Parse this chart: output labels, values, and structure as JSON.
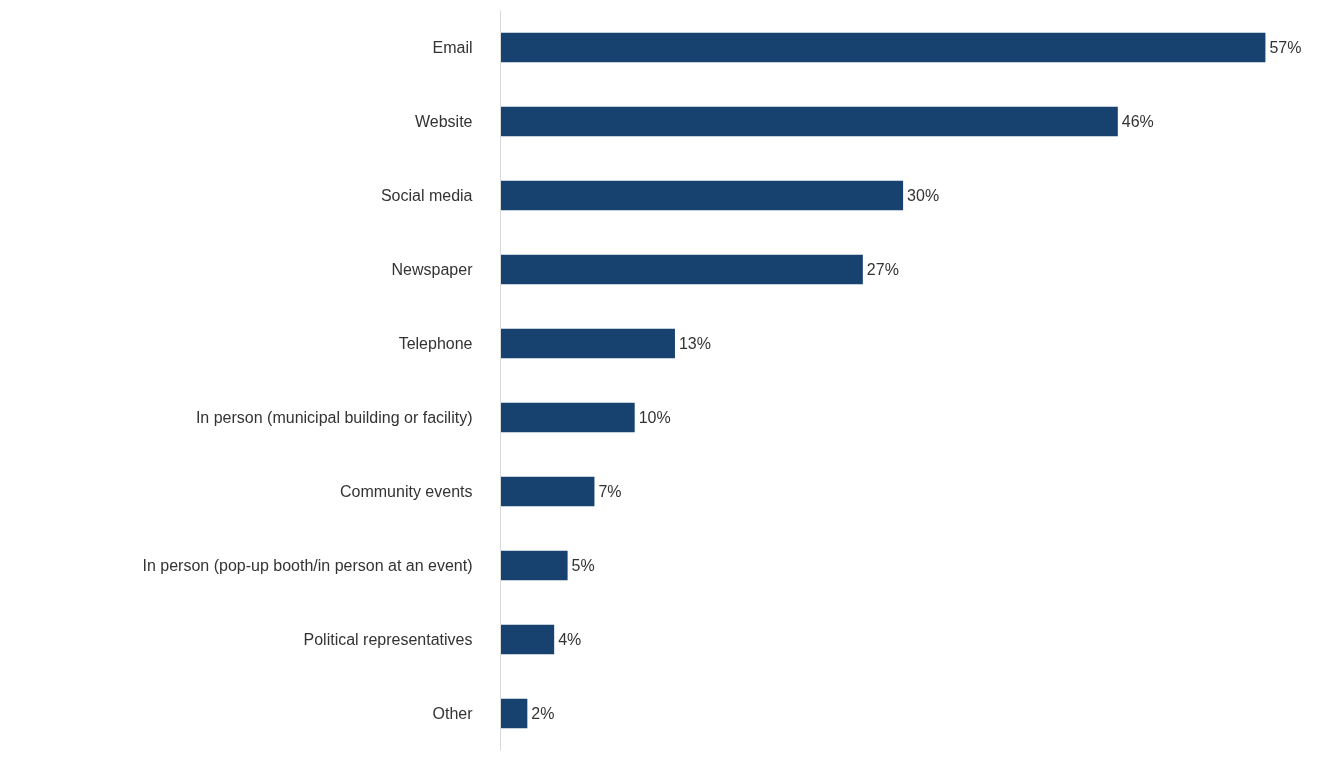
{
  "chart_data": {
    "type": "bar",
    "orientation": "horizontal",
    "categories": [
      "Email",
      "Website",
      "Social media",
      "Newspaper",
      "Telephone",
      "In person (municipal building or facility)",
      "Community events",
      "In person (pop-up booth/in person at an event)",
      "Political representatives",
      "Other"
    ],
    "values": [
      57,
      46,
      30,
      27,
      13,
      10,
      7,
      5,
      4,
      2
    ],
    "value_labels": [
      "57%",
      "46%",
      "30%",
      "27%",
      "13%",
      "10%",
      "7%",
      "5%",
      "4%",
      "2%"
    ],
    "color": "#17416e",
    "grid": false
  }
}
